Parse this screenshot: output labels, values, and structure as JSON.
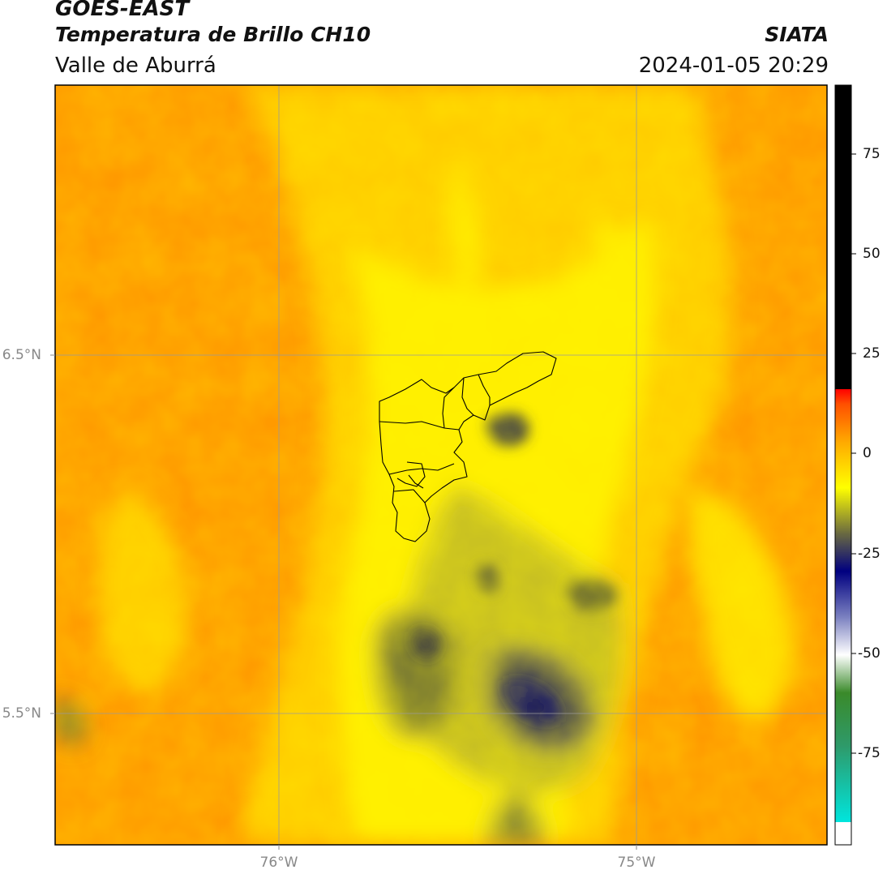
{
  "header": {
    "satellite": "GOES-EAST",
    "product": "Temperatura de Brillo CH10",
    "region": "Valle de Aburrá",
    "source": "SIATA",
    "datetime": "2024-01-05 20:29"
  },
  "axes": {
    "lat_ticks": [
      "6.5°N",
      "5.5°N"
    ],
    "lon_ticks": [
      "76°W",
      "75°W"
    ]
  },
  "colorbar": {
    "ticks": [
      "75",
      "50",
      "25",
      "0",
      "-25",
      "-50",
      "-75"
    ],
    "stops": [
      {
        "color": "#ffffff"
      },
      {
        "color": "#00e5dd"
      },
      {
        "color": "#2e8b57"
      },
      {
        "color": "#3a8a2a"
      },
      {
        "color": "#ffffff"
      },
      {
        "color": "#3d48a0"
      },
      {
        "color": "#000080"
      },
      {
        "color": "#6a6a40"
      },
      {
        "color": "#ffff00"
      },
      {
        "color": "#ff9a00"
      },
      {
        "color": "#ff0000"
      },
      {
        "color": "#000000"
      }
    ]
  },
  "colors": {
    "warm": "#ff9a00",
    "mid": "#ffd000",
    "cool": "#ffff00",
    "cold": "#8a8a30",
    "coldest": "#1a1a6a"
  }
}
